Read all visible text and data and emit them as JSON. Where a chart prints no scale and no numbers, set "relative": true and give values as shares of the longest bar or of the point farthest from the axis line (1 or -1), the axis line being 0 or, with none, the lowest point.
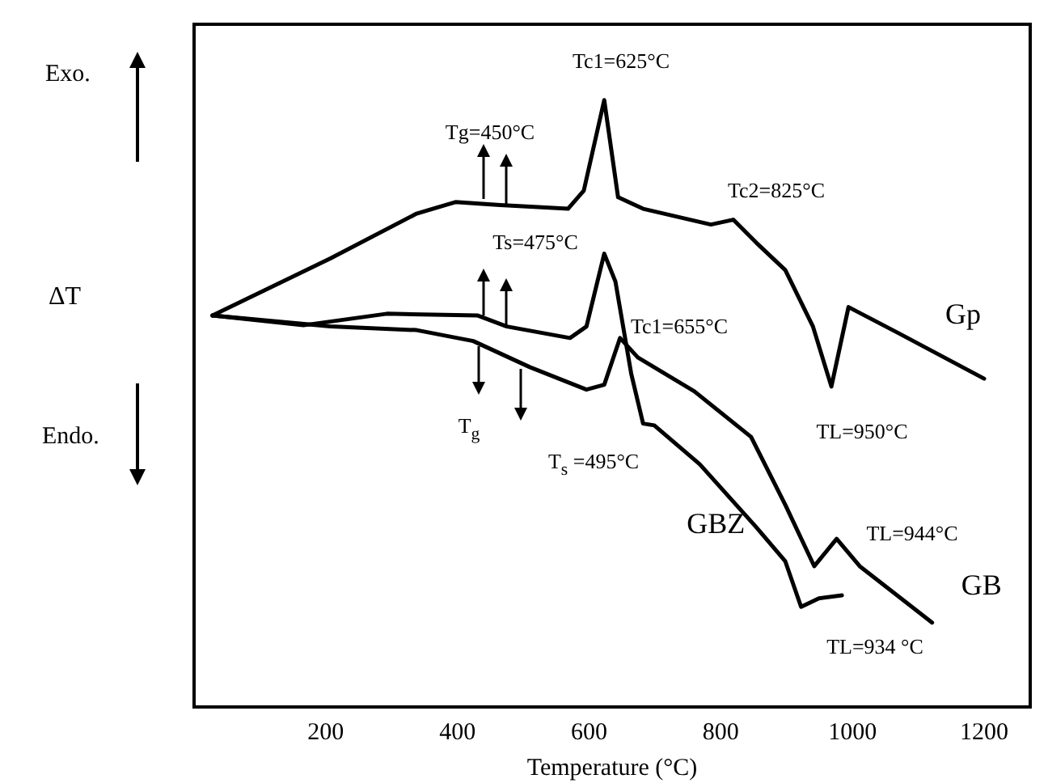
{
  "chart_data": {
    "type": "line",
    "relative": true,
    "xlabel": "Temperature (°C)",
    "ylabel": "ΔT",
    "xlim": [
      0,
      1270
    ],
    "xticks": [
      200,
      400,
      600,
      800,
      1000,
      1200
    ],
    "grid": false,
    "legend": false,
    "marker": "none",
    "line_style": "solid",
    "series": [
      {
        "name": "Gp",
        "color": "#000000",
        "x": [
          28,
          207,
          338,
          397,
          465,
          568,
          592,
          623,
          644,
          682,
          785,
          819,
          854,
          898,
          940,
          968,
          994,
          1070,
          1200
        ],
        "values": [
          0.645,
          0.739,
          0.813,
          0.832,
          0.827,
          0.821,
          0.851,
          1.0,
          0.84,
          0.821,
          0.795,
          0.803,
          0.765,
          0.72,
          0.627,
          0.528,
          0.659,
          0.616,
          0.541
        ]
      },
      {
        "name": "GBZ",
        "color": "#000000",
        "x": [
          28,
          166,
          293,
          431,
          475,
          571,
          596,
          623,
          640,
          664,
          682,
          699,
          768,
          854,
          898,
          922,
          949,
          984
        ],
        "values": [
          0.645,
          0.629,
          0.648,
          0.645,
          0.627,
          0.608,
          0.627,
          0.747,
          0.701,
          0.549,
          0.467,
          0.464,
          0.4,
          0.296,
          0.24,
          0.165,
          0.179,
          0.184
        ]
      },
      {
        "name": "GB",
        "color": "#000000",
        "x": [
          28,
          207,
          338,
          424,
          510,
          596,
          623,
          647,
          674,
          760,
          846,
          898,
          942,
          976,
          1011,
          1121
        ],
        "values": [
          0.645,
          0.627,
          0.621,
          0.603,
          0.56,
          0.523,
          0.531,
          0.608,
          0.576,
          0.52,
          0.445,
          0.333,
          0.232,
          0.277,
          0.232,
          0.139
        ]
      }
    ],
    "annotations": [
      "Exo.",
      "Endo.",
      "Tc1=625°C",
      "Tg=450°C",
      "Tc2=825°C",
      "Ts=475°C",
      "Tc1=655°C",
      "T$_{g}$",
      "T$_{s}$ =495°C",
      "TL=950°C",
      "TL=944°C",
      "TL=934 °C"
    ]
  }
}
